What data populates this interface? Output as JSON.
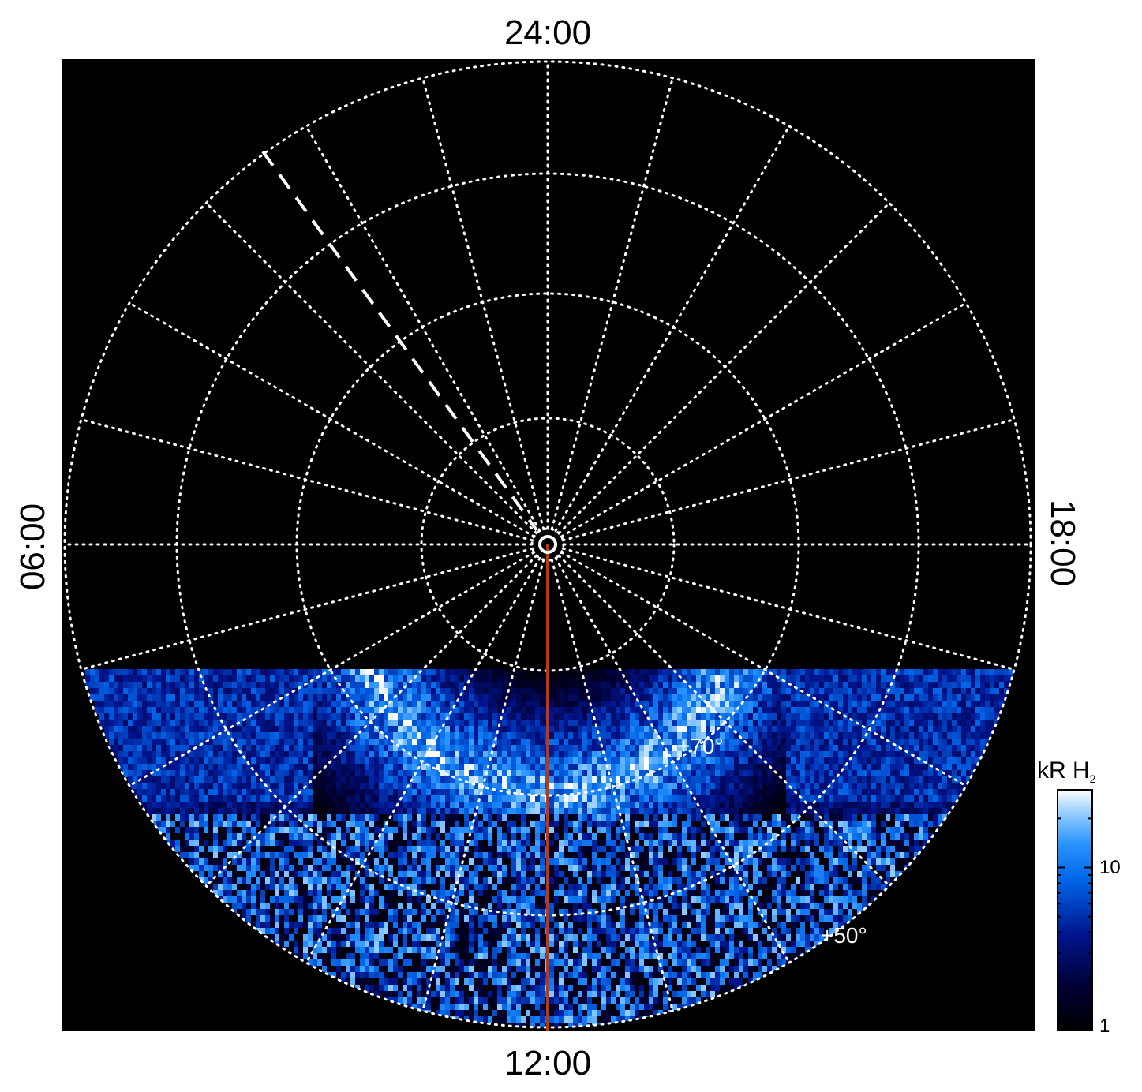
{
  "chart_data": {
    "type": "heatmap",
    "projection": "polar",
    "local_time_labels": {
      "top": "24:00",
      "bottom": "12:00",
      "left": "06:00",
      "right": "18:00"
    },
    "latitude_labels": [
      "+70°",
      "+50°"
    ],
    "colorbar": {
      "title": "kR H",
      "title_subscript": "2",
      "scale": "log",
      "range": [
        1,
        30
      ],
      "tick_labels": [
        {
          "value": 10,
          "label": "10"
        },
        {
          "value": 1,
          "label": "1"
        }
      ]
    },
    "grid": true,
    "grid_rings_deg_colatitude": [
      3,
      10,
      20,
      30,
      40
    ],
    "meridian_step_hours": 1,
    "data_region": "dayside hemisphere (approx. 08:00–16:00 LT); no data on nightside",
    "auroral_oval": {
      "brightest_kR": 30,
      "latitude_deg": 70,
      "local_time_range": [
        "08:00",
        "16:00"
      ]
    },
    "background_noise_kR": [
      1,
      15
    ],
    "colors": {
      "background": "#000000",
      "grid": "#ffffff",
      "reference_meridian": "#cc3300",
      "dashed_meridian": "#ffffff"
    }
  }
}
